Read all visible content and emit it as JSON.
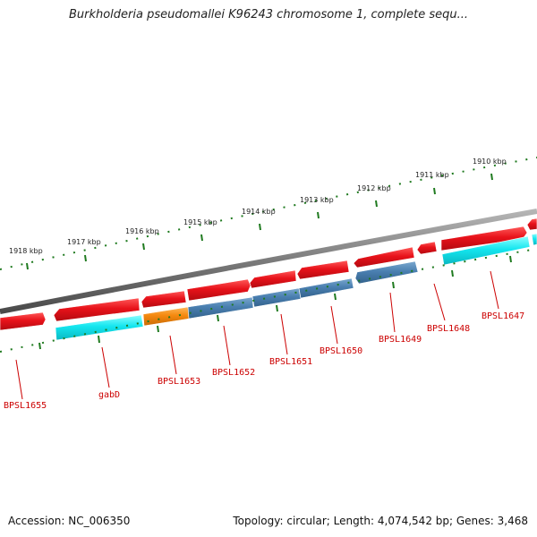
{
  "title": "Burkholderia pseudomallei K96243 chromosome 1, complete sequ...",
  "footer": {
    "accession": "Accession: NC_006350",
    "summary": "Topology: circular; Length: 4,074,542 bp; Genes: 3,468"
  },
  "colors": {
    "backbone": "#7a7a7a",
    "tick": "#1f7a1f",
    "forward_gene": "#e8121a",
    "reverse_gene": "#14e6ef",
    "highlight_gene": "#f5890f",
    "steel_gene": "#4a7fb0",
    "label": "#cc0000"
  },
  "kbp_markers": [
    {
      "label": "1910 kbp"
    },
    {
      "label": "1911 kbp"
    },
    {
      "label": "1912 kbp"
    },
    {
      "label": "1913 kbp"
    },
    {
      "label": "1914 kbp"
    },
    {
      "label": "1915 kbp"
    },
    {
      "label": "1916 kbp"
    },
    {
      "label": "1917 kbp"
    },
    {
      "label": "1918 kbp"
    }
  ],
  "gene_labels": [
    {
      "name": "BPSL1647"
    },
    {
      "name": "BPSL1648"
    },
    {
      "name": "BPSL1649"
    },
    {
      "name": "BPSL1650"
    },
    {
      "name": "BPSL1651"
    },
    {
      "name": "BPSL1652"
    },
    {
      "name": "BPSL1653"
    },
    {
      "name": "gabD"
    },
    {
      "name": "BPSL1655"
    }
  ]
}
